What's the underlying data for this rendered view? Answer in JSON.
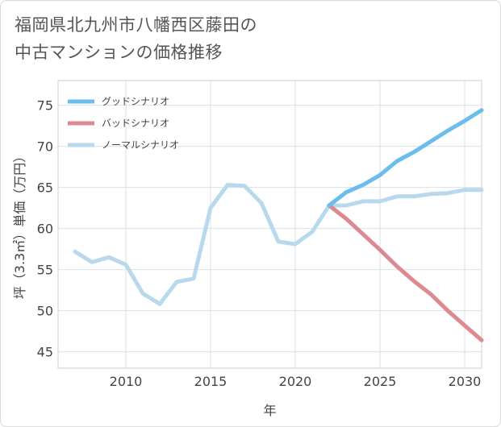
{
  "title_lines": [
    "福岡県北九州市八幡西区藤田の",
    "中古マンションの価格推移"
  ],
  "chart_data": {
    "type": "line",
    "title": "福岡県北九州市八幡西区藤田の中古マンションの価格推移",
    "xlabel": "年",
    "ylabel": "坪（3.3㎡）単価（万円）",
    "xlim": [
      2006,
      2031
    ],
    "ylim": [
      43,
      78
    ],
    "x_ticks": [
      2010,
      2015,
      2020,
      2025,
      2030
    ],
    "y_ticks": [
      45,
      50,
      55,
      60,
      65,
      70,
      75
    ],
    "grid": true,
    "legend_position": "top-left",
    "series": [
      {
        "name": "グッドシナリオ",
        "color": "#6cbcec",
        "x": [
          2022,
          2023,
          2024,
          2025,
          2026,
          2027,
          2028,
          2029,
          2030,
          2031
        ],
        "y": [
          62.8,
          64.4,
          65.3,
          66.5,
          68.2,
          69.3,
          70.6,
          71.9,
          73.1,
          74.4
        ]
      },
      {
        "name": "バッドシナリオ",
        "color": "#dc8a90",
        "x": [
          2022,
          2023,
          2024,
          2025,
          2026,
          2027,
          2028,
          2029,
          2030,
          2031
        ],
        "y": [
          62.8,
          61.2,
          59.3,
          57.4,
          55.4,
          53.6,
          52.0,
          50.0,
          48.2,
          46.4
        ]
      },
      {
        "name": "ノーマルシナリオ",
        "color": "#b8d9ec",
        "x": [
          2007,
          2008,
          2009,
          2010,
          2011,
          2012,
          2013,
          2014,
          2015,
          2016,
          2017,
          2018,
          2019,
          2020,
          2021,
          2022,
          2023,
          2024,
          2025,
          2026,
          2027,
          2028,
          2029,
          2030,
          2031
        ],
        "y": [
          57.2,
          55.9,
          56.5,
          55.6,
          52.1,
          50.8,
          53.5,
          53.9,
          62.5,
          65.3,
          65.2,
          63.1,
          58.4,
          58.1,
          59.6,
          62.8,
          62.8,
          63.3,
          63.3,
          63.9,
          63.9,
          64.2,
          64.3,
          64.7,
          64.7
        ]
      }
    ]
  }
}
